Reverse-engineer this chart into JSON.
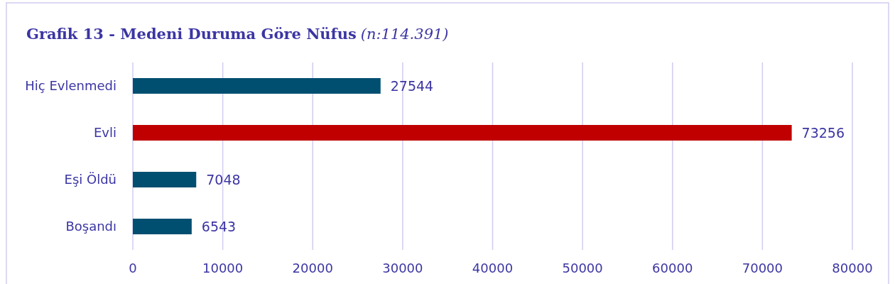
{
  "chart_data": {
    "type": "bar",
    "orientation": "horizontal",
    "title": "Grafik 13 - Medeni Duruma Göre Nüfus",
    "subtitle": "(n:114.391)",
    "categories": [
      "Hiç Evlenmedi",
      "Evli",
      "Eşi Öldü",
      "Boşandı"
    ],
    "values": [
      27544,
      73256,
      7048,
      6543
    ],
    "colors": [
      "#004f71",
      "#c00000",
      "#004f71",
      "#004f71"
    ],
    "xlim": [
      0,
      80000
    ],
    "xticks": [
      0,
      10000,
      20000,
      30000,
      40000,
      50000,
      60000,
      70000,
      80000
    ],
    "grid": "x",
    "data_labels": true
  }
}
